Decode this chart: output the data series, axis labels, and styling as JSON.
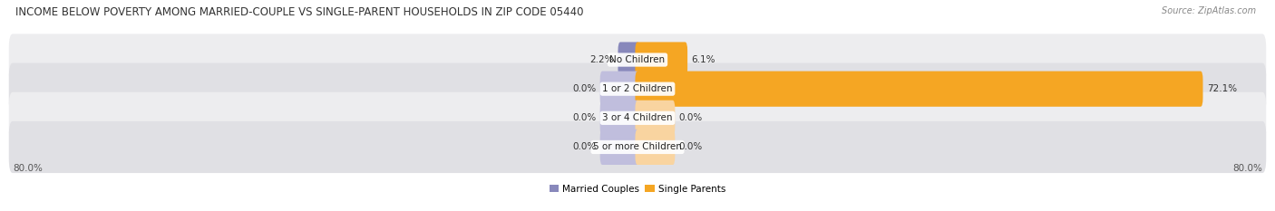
{
  "title": "INCOME BELOW POVERTY AMONG MARRIED-COUPLE VS SINGLE-PARENT HOUSEHOLDS IN ZIP CODE 05440",
  "source": "Source: ZipAtlas.com",
  "categories": [
    "No Children",
    "1 or 2 Children",
    "3 or 4 Children",
    "5 or more Children"
  ],
  "married_values": [
    2.2,
    0.0,
    0.0,
    0.0
  ],
  "single_values": [
    6.1,
    72.1,
    0.0,
    0.0
  ],
  "married_color": "#8888bb",
  "single_color": "#f5a623",
  "married_color_zero": "#c0bedd",
  "single_color_zero": "#f9d4a0",
  "row_bg_even": "#ededef",
  "row_bg_odd": "#e0e0e4",
  "axis_limit": 80.0,
  "min_bar_width": 4.5,
  "legend_labels": [
    "Married Couples",
    "Single Parents"
  ],
  "title_fontsize": 8.5,
  "source_fontsize": 7.0,
  "label_fontsize": 7.5,
  "value_fontsize": 7.5,
  "tick_fontsize": 7.5
}
